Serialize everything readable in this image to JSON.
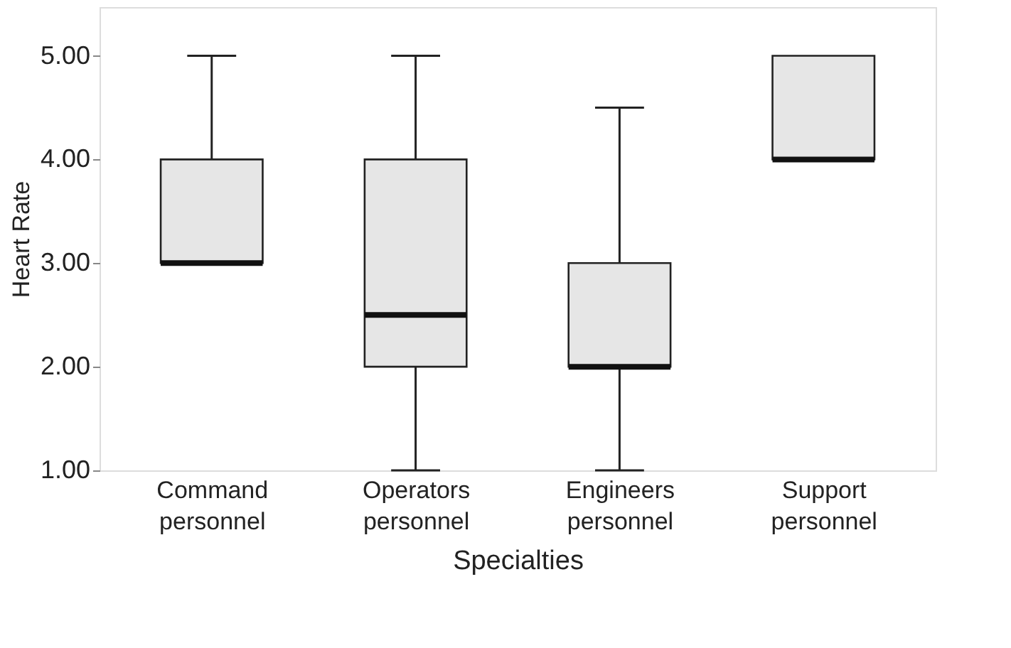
{
  "chart_data": {
    "type": "box",
    "xlabel": "Specialties",
    "ylabel": "Heart Rate",
    "categories": [
      "Command personnel",
      "Operators personnel",
      "Engineers personnel",
      "Support personnel"
    ],
    "boxes": [
      {
        "low": 3,
        "q1": 3,
        "median": 3,
        "q3": 4,
        "high": 5
      },
      {
        "low": 1,
        "q1": 2,
        "median": 2.5,
        "q3": 4,
        "high": 5
      },
      {
        "low": 1,
        "q1": 2,
        "median": 2,
        "q3": 3,
        "high": 4.5
      },
      {
        "low": 4,
        "q1": 4,
        "median": 4,
        "q3": 5,
        "high": 5
      }
    ],
    "color": "#e6e6e6",
    "ylim": [
      1,
      5.47
    ],
    "yticks": [
      {
        "value": 1,
        "label": "1.00"
      },
      {
        "value": 2,
        "label": "2.00"
      },
      {
        "value": 3,
        "label": "3.00"
      },
      {
        "value": 4,
        "label": "4.00"
      },
      {
        "value": 5,
        "label": "5.00"
      }
    ],
    "grid": false
  }
}
